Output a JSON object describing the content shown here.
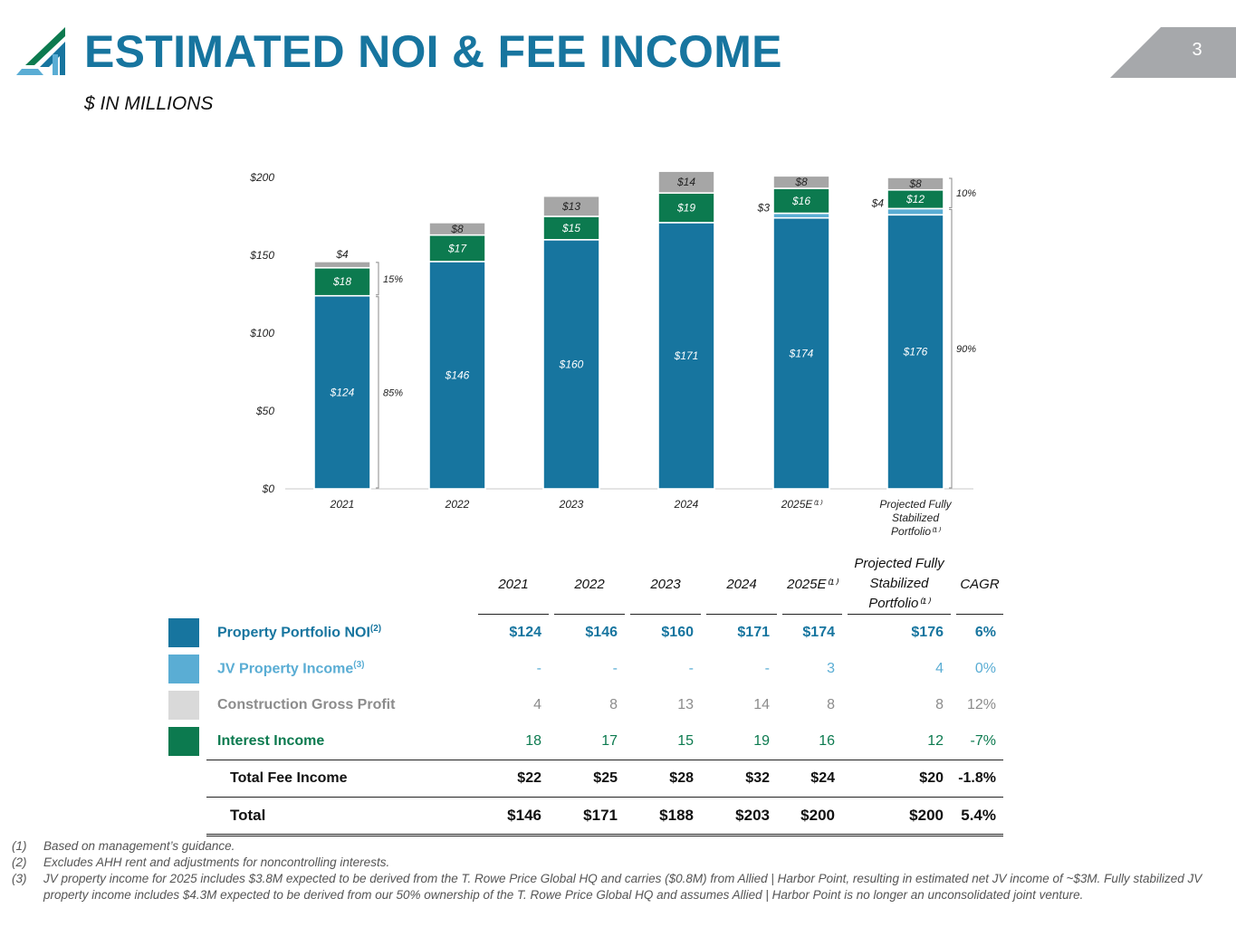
{
  "header": {
    "title": "ESTIMATED NOI & FEE INCOME",
    "subtitle": "$ IN MILLIONS",
    "page_number": "3"
  },
  "chart_data": {
    "type": "bar",
    "stacked": true,
    "categories": [
      "2021",
      "2022",
      "2023",
      "2024",
      "2025E⁽¹⁾",
      "Projected Fully Stabilized Portfolio⁽¹⁾"
    ],
    "category_lines": [
      [
        "2021"
      ],
      [
        "2022"
      ],
      [
        "2023"
      ],
      [
        "2024"
      ],
      [
        "2025E⁽¹⁾"
      ],
      [
        "Projected Fully",
        "Stabilized",
        "Portfolio⁽¹⁾"
      ]
    ],
    "series": [
      {
        "name": "Property Portfolio NOI",
        "color": "#17759f",
        "values": [
          124,
          146,
          160,
          171,
          174,
          176
        ],
        "labels": [
          "$124",
          "$146",
          "$160",
          "$171",
          "$174",
          "$176"
        ]
      },
      {
        "name": "JV Property Income",
        "color": "#5aadd4",
        "values": [
          0,
          0,
          0,
          0,
          3,
          4
        ],
        "labels": [
          "",
          "",
          "",
          "",
          "$3",
          "$4"
        ]
      },
      {
        "name": "Interest Income",
        "color": "#0c7a4f",
        "values": [
          18,
          17,
          15,
          19,
          16,
          12
        ],
        "labels": [
          "$18",
          "$17",
          "$15",
          "$19",
          "$16",
          "$12"
        ]
      },
      {
        "name": "Construction Gross Profit",
        "color": "#a6a6a6",
        "values": [
          4,
          8,
          13,
          14,
          8,
          8
        ],
        "labels": [
          "$4",
          "$8",
          "$13",
          "$14",
          "$8",
          "$8"
        ]
      }
    ],
    "y_ticks": [
      0,
      50,
      100,
      150,
      200
    ],
    "y_tick_labels": [
      "$0",
      "$50",
      "$100",
      "$150",
      "$200"
    ],
    "ylim": [
      0,
      200
    ],
    "brackets": [
      {
        "bar": 0,
        "from": 0,
        "to": 124,
        "label": "85%"
      },
      {
        "bar": 0,
        "from": 124,
        "to": 146,
        "label": "15%"
      },
      {
        "bar": 5,
        "from": 0,
        "to": 180,
        "label": "90%"
      },
      {
        "bar": 5,
        "from": 180,
        "to": 200,
        "label": "10%"
      }
    ]
  },
  "table": {
    "columns": [
      "2021",
      "2022",
      "2023",
      "2024",
      "2025E⁽¹⁾",
      "Projected Fully",
      "Stabilized",
      "Portfolio⁽¹⁾",
      "CAGR"
    ],
    "rows": {
      "noi": {
        "label": "Property Portfolio NOI",
        "sup": "(2)",
        "color": "#17759f",
        "values": [
          "$124",
          "$146",
          "$160",
          "$171",
          "$174",
          "$176",
          "6%"
        ]
      },
      "jv": {
        "label": "JV Property Income",
        "sup": "(3)",
        "color": "#5aadd4",
        "values": [
          "-",
          "-",
          "-",
          "-",
          "3",
          "4",
          "0%"
        ]
      },
      "cgp": {
        "label": "Construction Gross Profit",
        "color": "#d9d9d9",
        "values": [
          "4",
          "8",
          "13",
          "14",
          "8",
          "8",
          "12%"
        ]
      },
      "interest": {
        "label": "Interest Income",
        "color": "#0c7a4f",
        "values": [
          "18",
          "17",
          "15",
          "19",
          "16",
          "12",
          "-7%"
        ]
      },
      "total_fee": {
        "label": "Total Fee Income",
        "values": [
          "$22",
          "$25",
          "$28",
          "$32",
          "$24",
          "$20",
          "-1.8%"
        ]
      },
      "total": {
        "label": "Total",
        "values": [
          "$146",
          "$171",
          "$188",
          "$203",
          "$200",
          "$200",
          "5.4%"
        ]
      }
    }
  },
  "footnotes": [
    {
      "num": "(1)",
      "text": "Based on management’s guidance."
    },
    {
      "num": "(2)",
      "text": "Excludes AHH rent and adjustments for noncontrolling interests."
    },
    {
      "num": "(3)",
      "text": "JV property income for 2025 includes $3.8M expected to be derived from the T. Rowe Price Global HQ and carries ($0.8M) from Allied | Harbor Point, resulting in estimated net JV income of ~$3M. Fully stabilized JV property income includes $4.3M expected to be derived from our 50% ownership of the T. Rowe Price Global HQ and assumes Allied | Harbor Point is no longer an unconsolidated joint venture."
    }
  ]
}
